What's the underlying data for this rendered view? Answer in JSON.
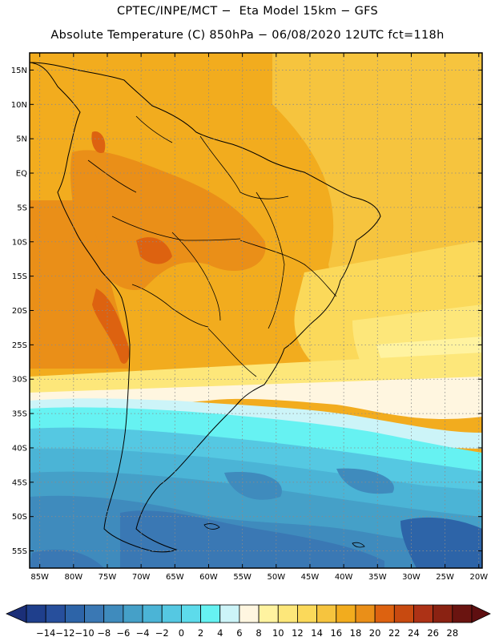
{
  "header": {
    "line1": "CPTEC/INPE/MCT −  Eta Model 15km − GFS",
    "line2": "Absolute Temperature (C) 850hPa − 06/08/2020 12UTC fct=118h"
  },
  "map": {
    "lat_labels": [
      "15N",
      "10N",
      "5N",
      "EQ",
      "5S",
      "10S",
      "15S",
      "20S",
      "25S",
      "30S",
      "35S",
      "40S",
      "45S",
      "50S",
      "55S"
    ],
    "lat_values": [
      15,
      10,
      5,
      0,
      -5,
      -10,
      -15,
      -20,
      -25,
      -30,
      -35,
      -40,
      -45,
      -50,
      -55
    ],
    "lon_labels": [
      "85W",
      "80W",
      "75W",
      "70W",
      "65W",
      "60W",
      "55W",
      "50W",
      "45W",
      "40W",
      "35W",
      "30W",
      "25W",
      "20W"
    ],
    "lon_values": [
      -85,
      -80,
      -75,
      -70,
      -65,
      -60,
      -55,
      -50,
      -45,
      -40,
      -35,
      -30,
      -25,
      -20
    ],
    "lat_range": [
      -57.5,
      17.5
    ],
    "lon_range": [
      -86.5,
      -19.5
    ]
  },
  "colorbar": {
    "labels": [
      "-14",
      "-12",
      "-10",
      "-8",
      "-6",
      "-4",
      "-2",
      "0",
      "2",
      "4",
      "6",
      "8",
      "10",
      "12",
      "14",
      "16",
      "18",
      "20",
      "22",
      "24",
      "26",
      "28"
    ],
    "colors": [
      "#1f3f8c",
      "#274f9c",
      "#2d64a8",
      "#3a78b4",
      "#3f8bbd",
      "#45a0c8",
      "#4bb4d6",
      "#55c8e2",
      "#5ddbeb",
      "#66f2f2",
      "#ccf4f8",
      "#fff6e0",
      "#fff3a0",
      "#fde77a",
      "#fbd95a",
      "#f6c43e",
      "#f2ac1e",
      "#ea8f18",
      "#dd6210",
      "#c84a10",
      "#ad3216",
      "#8a2212",
      "#6a1410"
    ]
  }
}
